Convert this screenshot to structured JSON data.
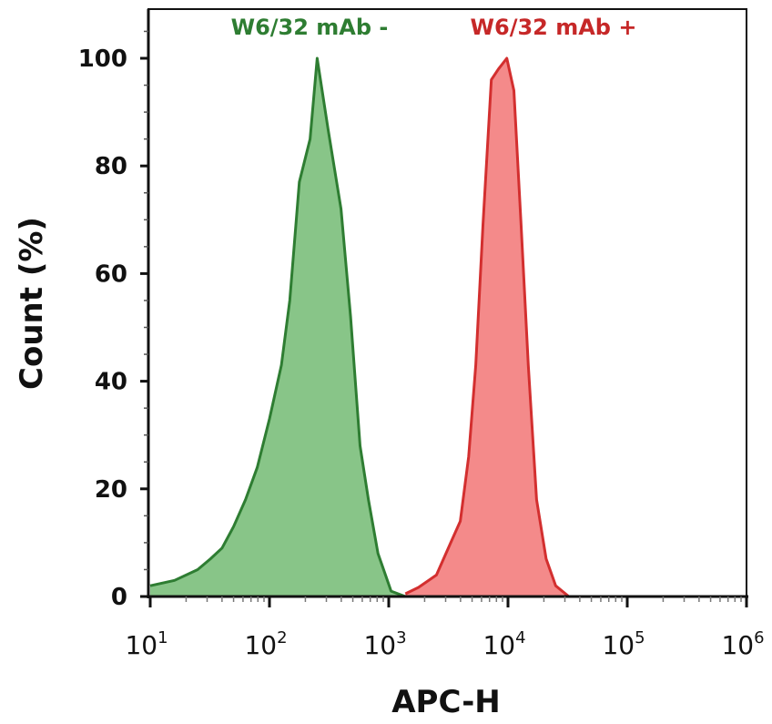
{
  "chart_data": {
    "type": "area",
    "title": "",
    "xlabel": "APC-H",
    "ylabel": "Count (%)",
    "xscale": "log",
    "xlim": [
      10,
      1000000
    ],
    "ylim": [
      0,
      100
    ],
    "x_ticks": [
      {
        "base": "10",
        "exp": "1"
      },
      {
        "base": "10",
        "exp": "2"
      },
      {
        "base": "10",
        "exp": "3"
      },
      {
        "base": "10",
        "exp": "4"
      },
      {
        "base": "10",
        "exp": "5"
      },
      {
        "base": "10",
        "exp": "6"
      }
    ],
    "y_ticks": [
      "0",
      "20",
      "40",
      "60",
      "80",
      "100"
    ],
    "grid": false,
    "legend_placement": "top, labels above peaks",
    "series": [
      {
        "name": "W6/32 mAb -",
        "color": "#2e7d32",
        "fill": "#88c588",
        "x": [
          10,
          16,
          25,
          32,
          40,
          50,
          63,
          79,
          100,
          126,
          148,
          178,
          219,
          251,
          309,
          398,
          479,
          575,
          676,
          813,
          1047,
          1380
        ],
        "y": [
          2,
          3,
          5,
          7,
          9,
          13,
          18,
          24,
          33,
          43,
          55,
          77,
          85,
          100,
          87,
          72,
          52,
          28,
          18,
          8,
          1,
          0
        ]
      },
      {
        "name": "W6/32 mAb +",
        "color": "#d32f2f",
        "fill": "#f48a8a",
        "x": [
          1380,
          1778,
          2512,
          3311,
          3981,
          4677,
          5370,
          6166,
          7244,
          8318,
          9772,
          11220,
          12882,
          14791,
          17378,
          20893,
          25119,
          32359
        ],
        "y": [
          0.5,
          1.7,
          4,
          10,
          14,
          26,
          43,
          69,
          96,
          98,
          100,
          94,
          69,
          43,
          18,
          7,
          2,
          0
        ]
      }
    ]
  }
}
